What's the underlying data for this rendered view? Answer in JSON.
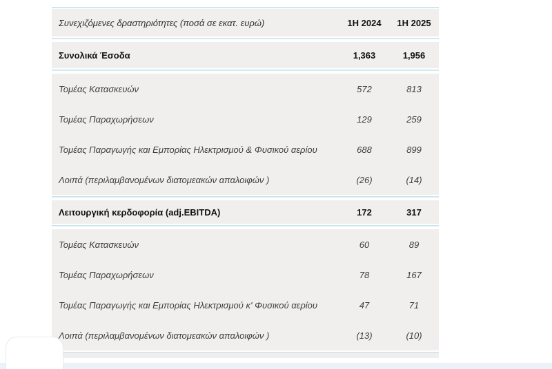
{
  "colors": {
    "accent_line": "#57a6c3",
    "row_background": "#f0efed",
    "bottom_band": "#edf2f8",
    "page_background": "#ffffff"
  },
  "chart_data": {
    "type": "table",
    "title": "Συνεχιζόμενες δραστηριότητες (ποσά σε εκατ. ευρώ)",
    "header": {
      "label": "Συνεχιζόμενες δραστηριότητες (ποσά σε εκατ. ευρώ)",
      "col_2024": "1H 2024",
      "col_2025": "1H 2025"
    },
    "columns": [
      "Συνεχιζόμενες δραστηριότητες (ποσά σε εκατ. ευρώ)",
      "1H 2024",
      "1H 2025"
    ],
    "rows": [
      {
        "label": "Συνολικά Έσοδα",
        "h1_2024": "1,363",
        "h1_2025": "1,956",
        "emphasis": "total"
      },
      {
        "label": "Τομέας Κατασκευών",
        "h1_2024": "572",
        "h1_2025": "813",
        "emphasis": "detail"
      },
      {
        "label": "Τομέας Παραχωρήσεων",
        "h1_2024": "129",
        "h1_2025": "259",
        "emphasis": "detail"
      },
      {
        "label": "Τομέας Παραγωγής και Εμπορίας Ηλεκτρισμού & Φυσικού αερίου",
        "h1_2024": "688",
        "h1_2025": "899",
        "emphasis": "detail"
      },
      {
        "label": "Λοιπά (περιλαμβανομένων διατομεακών απαλοιφών )",
        "h1_2024": "(26)",
        "h1_2025": "(14)",
        "emphasis": "detail"
      },
      {
        "label": "Λειτουργική κερδοφορία (adj.EBITDA)",
        "h1_2024": "172",
        "h1_2025": "317",
        "emphasis": "total"
      },
      {
        "label": "Τομέας Κατασκευών",
        "h1_2024": "60",
        "h1_2025": "89",
        "emphasis": "detail"
      },
      {
        "label": "Τομέας Παραχωρήσεων",
        "h1_2024": "78",
        "h1_2025": "167",
        "emphasis": "detail"
      },
      {
        "label": "Τομέας Παραγωγής και Εμπορίας Ηλεκτρισμού κ' Φυσικού αερίου",
        "h1_2024": "47",
        "h1_2025": "71",
        "emphasis": "detail"
      },
      {
        "label": "Λοιπά (περιλαμβανομένων διατομεακών απαλοιφών )",
        "h1_2024": "(13)",
        "h1_2025": "(10)",
        "emphasis": "detail"
      }
    ]
  }
}
